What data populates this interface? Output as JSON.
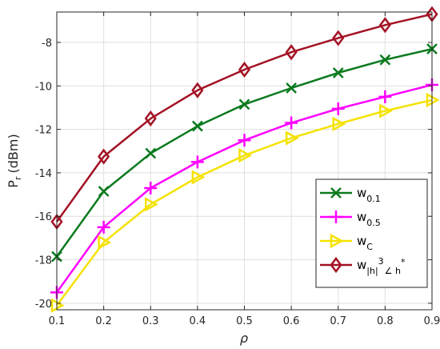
{
  "chart_data": {
    "type": "line",
    "title": "",
    "xlabel": "ρ",
    "ylabel_main": "P",
    "ylabel_sub": "r",
    "ylabel_unit": "(dBm)",
    "x": [
      0.1,
      0.2,
      0.3,
      0.4,
      0.5,
      0.6,
      0.7,
      0.8,
      0.9
    ],
    "xlim": [
      0.1,
      0.9
    ],
    "ylim": [
      -20.3,
      -6.6
    ],
    "x_ticks": [
      "0.1",
      "0.2",
      "0.3",
      "0.4",
      "0.5",
      "0.6",
      "0.7",
      "0.8",
      "0.9"
    ],
    "y_ticks": [
      "-20",
      "-18",
      "-16",
      "-14",
      "-12",
      "-10",
      "-8"
    ],
    "y_tick_values": [
      -20,
      -18,
      -16,
      -14,
      -12,
      -10,
      -8
    ],
    "grid": true,
    "legend_position": "bottom-right",
    "series": [
      {
        "name_main": "w",
        "name_sub": "0.1",
        "color": "#0b7a1f",
        "marker": "x",
        "values": [
          -17.85,
          -14.85,
          -13.1,
          -11.85,
          -10.85,
          -10.1,
          -9.4,
          -8.8,
          -8.3
        ]
      },
      {
        "name_main": "w",
        "name_sub": "0.5",
        "color": "#ff00ff",
        "marker": "plus",
        "values": [
          -19.5,
          -16.5,
          -14.7,
          -13.5,
          -12.5,
          -11.7,
          -11.05,
          -10.5,
          -9.95
        ]
      },
      {
        "name_main": "w",
        "name_sub": "C",
        "color": "#f5e200",
        "marker": "triangle-right",
        "values": [
          -20.1,
          -17.2,
          -15.45,
          -14.2,
          -13.2,
          -12.4,
          -11.75,
          -11.15,
          -10.65
        ]
      },
      {
        "name_main": "w",
        "name_sub": "|h|",
        "name_sup": "3",
        "name_sub2": "∠ h",
        "name_sup2": "*",
        "color": "#a31224",
        "marker": "diamond",
        "values": [
          -16.25,
          -13.25,
          -11.5,
          -10.2,
          -9.25,
          -8.45,
          -7.8,
          -7.2,
          -6.7
        ]
      }
    ]
  }
}
